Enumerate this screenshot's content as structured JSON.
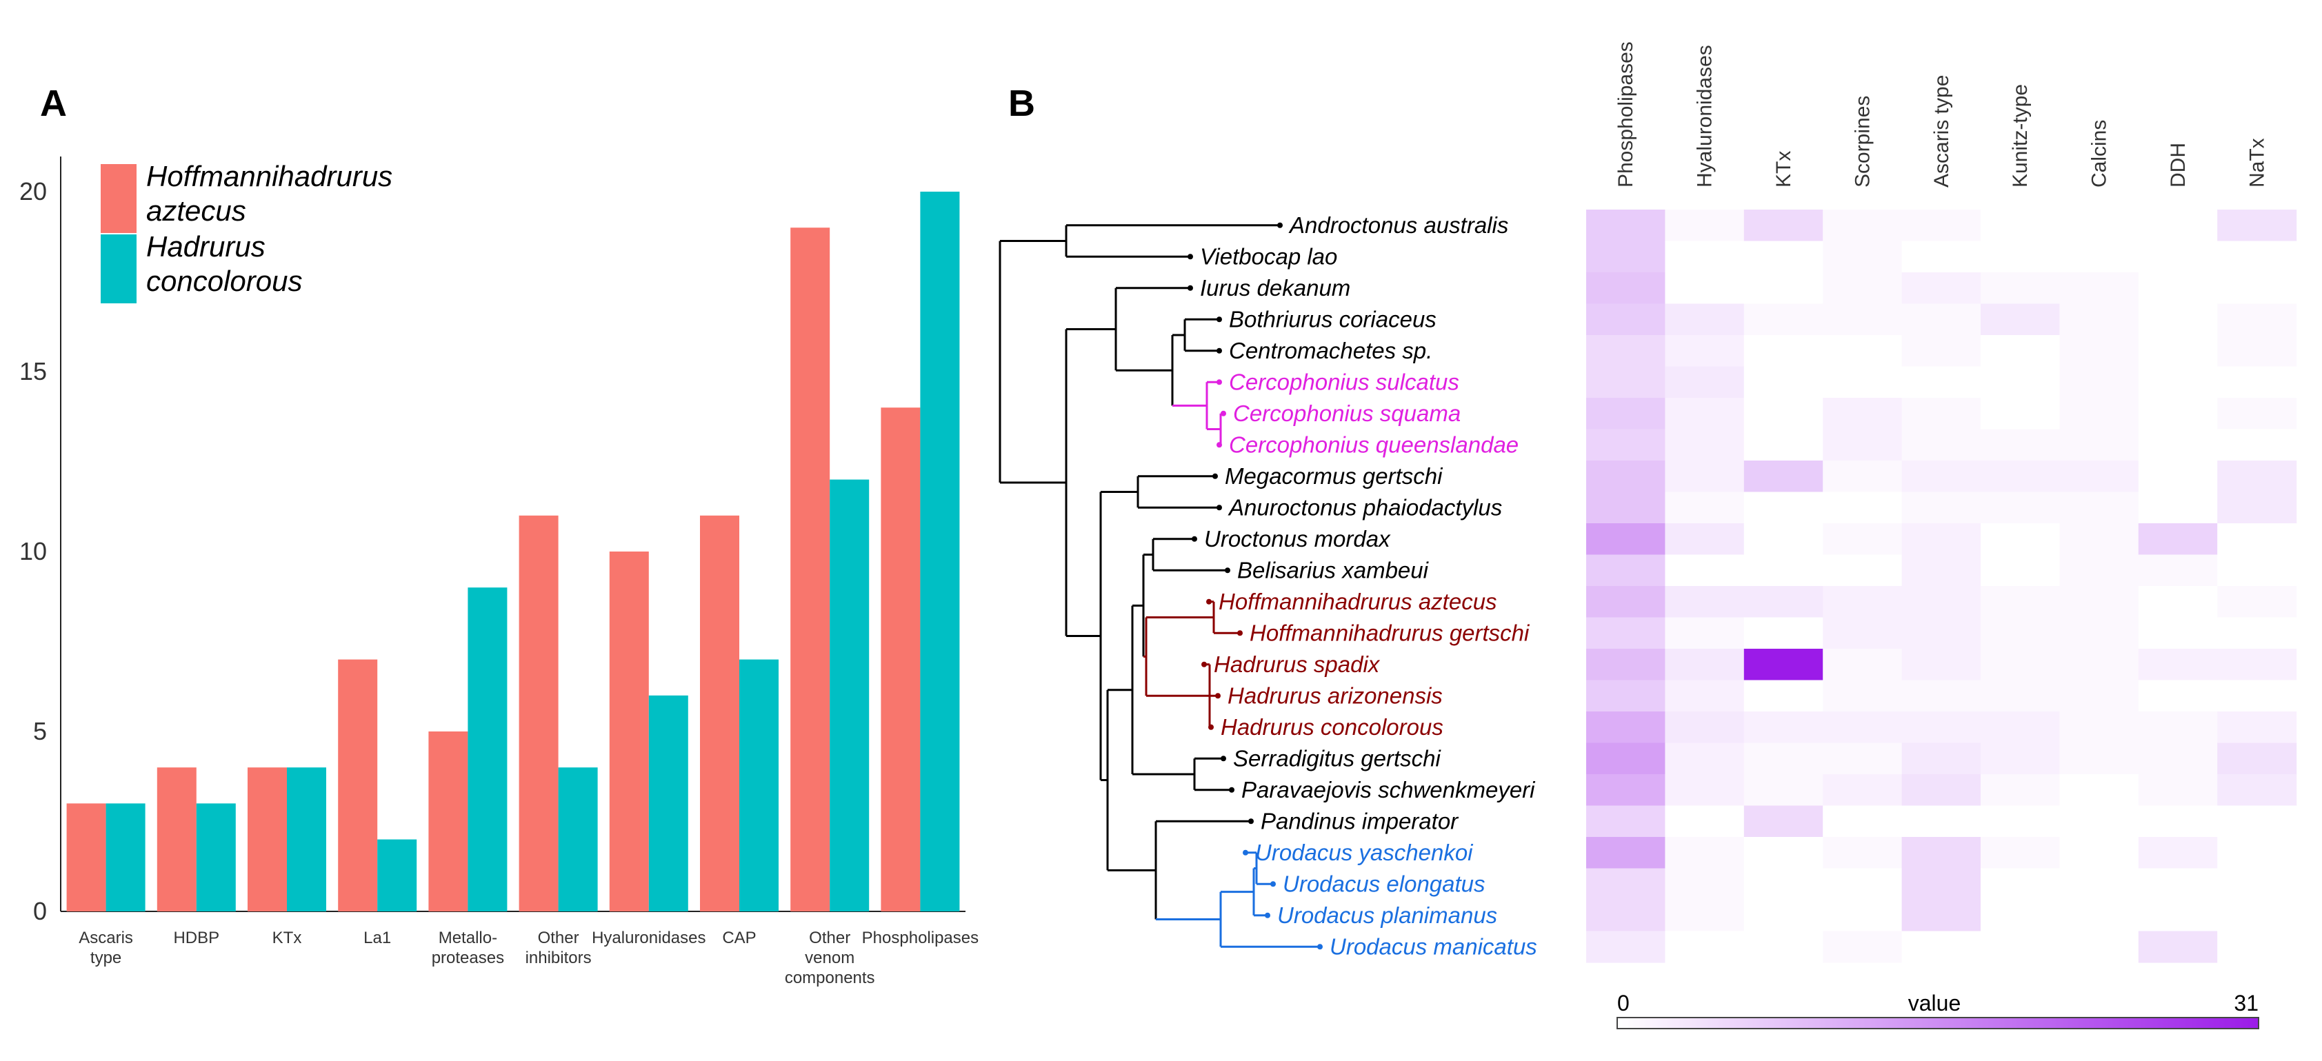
{
  "panels": {
    "a": "A",
    "b": "B"
  },
  "chart_data": [
    {
      "type": "bar",
      "title": "",
      "xlabel": "",
      "ylabel": "",
      "ylim": [
        0,
        21
      ],
      "yticks": [
        "0",
        "5",
        "10",
        "15",
        "20"
      ],
      "categories": [
        [
          "Ascaris",
          "type"
        ],
        [
          "HDBP"
        ],
        [
          "KTx"
        ],
        [
          "La1"
        ],
        [
          "Metallo-",
          "proteases"
        ],
        [
          "Other",
          "inhibitors"
        ],
        [
          "Hyaluronidases"
        ],
        [
          "CAP"
        ],
        [
          "Other",
          "venom",
          "components"
        ],
        [
          "Phospholipases"
        ]
      ],
      "series": [
        {
          "name": "Hoffmannihadrurus aztecus",
          "legend": [
            "Hoffmannihadrurus",
            "aztecus"
          ],
          "color": "#f8766d",
          "values": [
            3,
            4,
            4,
            7,
            5,
            11,
            10,
            11,
            19,
            14
          ]
        },
        {
          "name": "Hadrurus concolorous",
          "legend": [
            "Hadrurus",
            "concolorous"
          ],
          "color": "#00bfc4",
          "values": [
            3,
            3,
            4,
            2,
            9,
            4,
            6,
            7,
            12,
            20
          ]
        }
      ],
      "legend_position": "top-left"
    },
    {
      "type": "heatmap",
      "columns": [
        "Phospholipases",
        "Hyaluronidases",
        "KTx",
        "Scorpines",
        "Ascaris type",
        "Kunitz-type",
        "Calcins",
        "DDH",
        "NaTx"
      ],
      "rows": [
        {
          "species": "Androctonus australis",
          "color": "#000000",
          "values": [
            7,
            1,
            5,
            1,
            1,
            0,
            0,
            0,
            4
          ]
        },
        {
          "species": "Vietbocap lao",
          "color": "#000000",
          "values": [
            7,
            0,
            0,
            1,
            0,
            0,
            0,
            0,
            0
          ]
        },
        {
          "species": "Iurus dekanum",
          "color": "#000000",
          "values": [
            8,
            0,
            0,
            1,
            2,
            1,
            1,
            0,
            0
          ]
        },
        {
          "species": "Bothriurus coriaceus",
          "color": "#000000",
          "values": [
            7,
            3,
            1,
            1,
            1,
            3,
            1,
            0,
            1
          ]
        },
        {
          "species": "Centromachetes sp.",
          "color": "#000000",
          "values": [
            5,
            2,
            0,
            0,
            1,
            0,
            1,
            0,
            1
          ]
        },
        {
          "species": "Cercophonius sulcatus",
          "color": "#e020e0",
          "values": [
            5,
            3,
            0,
            0,
            0,
            0,
            1,
            0,
            0
          ]
        },
        {
          "species": "Cercophonius squama",
          "color": "#e020e0",
          "values": [
            7,
            2,
            0,
            2,
            1,
            0,
            1,
            0,
            1
          ]
        },
        {
          "species": "Cercophonius queenslandae",
          "color": "#e020e0",
          "values": [
            6,
            2,
            0,
            2,
            1,
            1,
            1,
            0,
            0
          ]
        },
        {
          "species": "Megacormus gertschi",
          "color": "#000000",
          "values": [
            8,
            2,
            7,
            1,
            2,
            2,
            2,
            0,
            3
          ]
        },
        {
          "species": "Anuroctonus phaiodactylus",
          "color": "#000000",
          "values": [
            8,
            1,
            0,
            0,
            1,
            1,
            1,
            0,
            3
          ]
        },
        {
          "species": "Uroctonus mordax",
          "color": "#000000",
          "values": [
            13,
            3,
            0,
            1,
            2,
            0,
            1,
            6,
            0
          ]
        },
        {
          "species": "Belisarius xambeui",
          "color": "#000000",
          "values": [
            7,
            0,
            0,
            0,
            2,
            0,
            1,
            1,
            0
          ]
        },
        {
          "species": "Hoffmannihadrurus aztecus",
          "color": "#8b0000",
          "values": [
            9,
            3,
            3,
            2,
            2,
            1,
            1,
            0,
            1
          ]
        },
        {
          "species": "Hoffmannihadrurus gertschi",
          "color": "#8b0000",
          "values": [
            6,
            1,
            0,
            2,
            2,
            1,
            1,
            0,
            0
          ]
        },
        {
          "species": "Hadrurus spadix",
          "color": "#8b0000",
          "values": [
            9,
            3,
            31,
            1,
            2,
            1,
            1,
            2,
            2
          ]
        },
        {
          "species": "Hadrurus arizonensis",
          "color": "#8b0000",
          "values": [
            7,
            2,
            0,
            1,
            1,
            1,
            1,
            0,
            0
          ]
        },
        {
          "species": "Hadrurus concolorous",
          "color": "#8b0000",
          "values": [
            11,
            3,
            2,
            2,
            2,
            2,
            1,
            1,
            2
          ]
        },
        {
          "species": "Serradigitus gertschi",
          "color": "#000000",
          "values": [
            13,
            2,
            1,
            1,
            3,
            2,
            1,
            1,
            4
          ]
        },
        {
          "species": "Paravaejovis schwenkmeyeri",
          "color": "#000000",
          "values": [
            11,
            2,
            1,
            2,
            4,
            1,
            0,
            1,
            3
          ]
        },
        {
          "species": "Pandinus imperator",
          "color": "#000000",
          "values": [
            6,
            0,
            5,
            0,
            0,
            0,
            0,
            0,
            0
          ]
        },
        {
          "species": "Urodacus yaschenkoi",
          "color": "#1a6fe0",
          "values": [
            12,
            1,
            0,
            1,
            5,
            1,
            0,
            2,
            0
          ]
        },
        {
          "species": "Urodacus elongatus",
          "color": "#1a6fe0",
          "values": [
            5,
            1,
            0,
            0,
            5,
            0,
            0,
            0,
            0
          ]
        },
        {
          "species": "Urodacus planimanus",
          "color": "#1a6fe0",
          "values": [
            5,
            1,
            0,
            0,
            5,
            0,
            0,
            0,
            0
          ]
        },
        {
          "species": "Urodacus manicatus",
          "color": "#1a6fe0",
          "values": [
            3,
            0,
            0,
            1,
            0,
            0,
            0,
            4,
            0
          ]
        }
      ],
      "colorbar": {
        "min_label": "0",
        "max_label": "31",
        "label": "value",
        "min": 0,
        "max": 31,
        "low_color": "#ffffff",
        "high_color": "#9b1be8"
      }
    }
  ]
}
